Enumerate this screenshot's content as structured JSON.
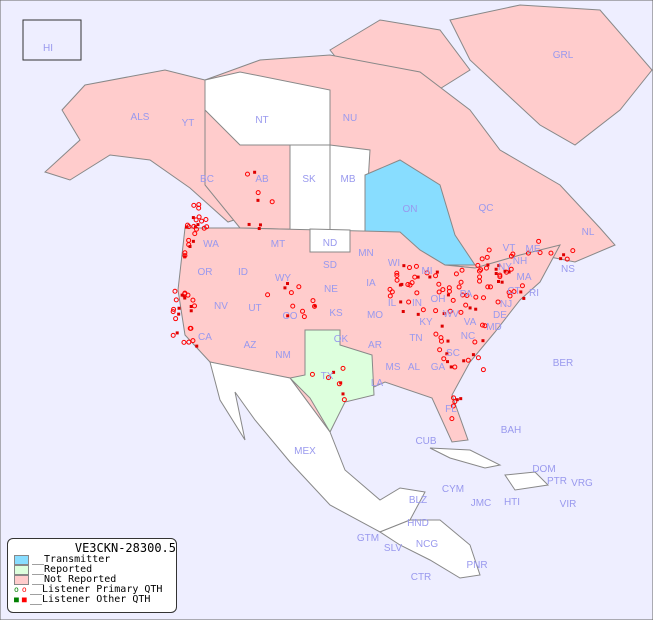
{
  "legend": {
    "title": "VE3CKN-28300.5",
    "items": [
      {
        "label": "__Transmitter",
        "color": "#88ddff"
      },
      {
        "label": "__Reported",
        "color": "#ddffdd"
      },
      {
        "label": "__Not Reported",
        "color": "#ffcccc"
      },
      {
        "label": "__Listener Primary QTH",
        "icon": "open-circle"
      },
      {
        "label": "__Listener Other QTH",
        "icon": "filled-square"
      }
    ]
  },
  "colors": {
    "background": "#eeeeff",
    "not_reported": "#ffcccc",
    "reported": "#ddffdd",
    "transmitter": "#88ddff",
    "marker": "#ff0000"
  },
  "regions": [
    "HI",
    "ALS",
    "YT",
    "NT",
    "NU",
    "GRL",
    "BC",
    "AB",
    "SK",
    "MB",
    "ON",
    "QC",
    "NL",
    "NS",
    "WA",
    "OR",
    "ID",
    "MT",
    "WY",
    "ND",
    "SD",
    "MN",
    "WI",
    "MI",
    "NY",
    "VT",
    "NH",
    "ME",
    "MA",
    "CT",
    "RI",
    "NJ",
    "PA",
    "DE",
    "MD",
    "OH",
    "IN",
    "IL",
    "IA",
    "NE",
    "KS",
    "CO",
    "UT",
    "NV",
    "CA",
    "AZ",
    "NM",
    "TX",
    "OK",
    "MO",
    "KY",
    "WV",
    "VA",
    "TN",
    "NC",
    "SC",
    "GA",
    "AL",
    "MS",
    "AR",
    "LA",
    "FL",
    "BAH",
    "CUB",
    "BER",
    "MEX",
    "DOM",
    "PTR",
    "VRG",
    "CYM",
    "JMC",
    "HTI",
    "VIR",
    "BLZ",
    "HND",
    "GTM",
    "SLV",
    "NCG",
    "CTR",
    "PNR"
  ]
}
